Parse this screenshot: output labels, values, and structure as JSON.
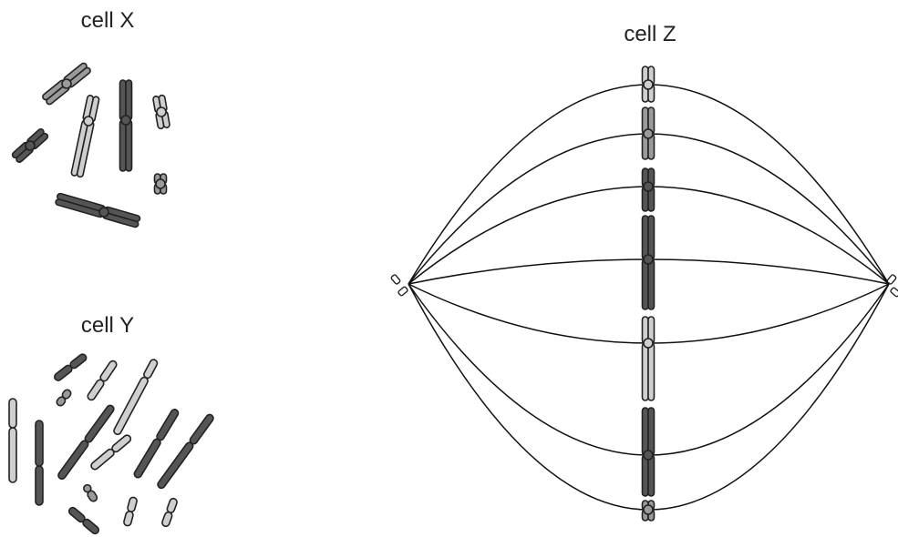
{
  "labels": {
    "cell_x": "cell X",
    "cell_y": "cell Y",
    "cell_z": "cell Z"
  }
}
